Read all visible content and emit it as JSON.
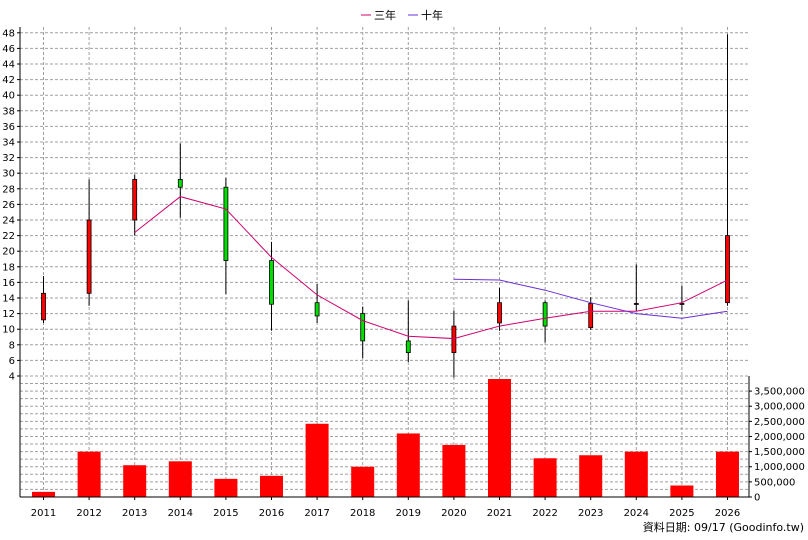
{
  "chart_data": {
    "type": "candlestick",
    "legend": {
      "placement": "top-center",
      "items": [
        {
          "name": "三年",
          "color": "#d0006f"
        },
        {
          "name": "十年",
          "color": "#6a2fd6"
        }
      ]
    },
    "years": [
      "2011",
      "2012",
      "2013",
      "2014",
      "2015",
      "2016",
      "2017",
      "2018",
      "2019",
      "2020",
      "2021",
      "2022",
      "2023",
      "2024",
      "2025",
      "2026"
    ],
    "price_axis": {
      "ylim": [
        4,
        48
      ],
      "ticks": [
        4,
        6,
        8,
        10,
        12,
        14,
        16,
        18,
        20,
        22,
        24,
        26,
        28,
        30,
        32,
        34,
        36,
        38,
        40,
        42,
        44,
        46,
        48
      ],
      "position": "left"
    },
    "volume_axis": {
      "ylim": [
        0,
        3900000
      ],
      "ticks": [
        0,
        500000,
        1000000,
        1500000,
        2000000,
        2500000,
        3000000,
        3500000
      ],
      "tick_labels": [
        "0",
        "500,000",
        "1,000,000",
        "1,500,000",
        "2,000,000",
        "2,500,000",
        "3,000,000",
        "3,500,000"
      ],
      "position": "right"
    },
    "candles": [
      {
        "year": "2011",
        "open": 11.2,
        "close": 14.6,
        "high": 16.8,
        "low": 10.8
      },
      {
        "year": "2012",
        "open": 14.6,
        "close": 24.0,
        "high": 29.2,
        "low": 13.0
      },
      {
        "year": "2013",
        "open": 24.0,
        "close": 29.2,
        "high": 29.8,
        "low": 22.0
      },
      {
        "year": "2014",
        "open": 29.2,
        "close": 28.2,
        "high": 33.8,
        "low": 24.3
      },
      {
        "year": "2015",
        "open": 28.2,
        "close": 18.8,
        "high": 29.4,
        "low": 14.5
      },
      {
        "year": "2016",
        "open": 18.8,
        "close": 13.2,
        "high": 21.2,
        "low": 9.8
      },
      {
        "year": "2017",
        "open": 13.4,
        "close": 11.7,
        "high": 15.8,
        "low": 10.8
      },
      {
        "year": "2018",
        "open": 12.0,
        "close": 8.5,
        "high": 12.9,
        "low": 6.3
      },
      {
        "year": "2019",
        "open": 8.5,
        "close": 7.0,
        "high": 13.7,
        "low": 5.8
      },
      {
        "year": "2020",
        "open": 7.0,
        "close": 10.4,
        "high": 12.4,
        "low": 3.8
      },
      {
        "year": "2021",
        "open": 10.8,
        "close": 13.4,
        "high": 15.3,
        "low": 9.8
      },
      {
        "year": "2022",
        "open": 13.4,
        "close": 10.4,
        "high": 13.7,
        "low": 8.3
      },
      {
        "year": "2023",
        "open": 10.2,
        "close": 13.3,
        "high": 14.1,
        "low": 9.9
      },
      {
        "year": "2024",
        "open": 13.3,
        "close": 13.3,
        "high": 18.3,
        "low": 12.3
      },
      {
        "year": "2025",
        "open": 13.3,
        "close": 13.3,
        "high": 15.6,
        "low": 12.3
      },
      {
        "year": "2026",
        "open": 13.4,
        "close": 22.0,
        "high": 47.8,
        "low": 13.0
      }
    ],
    "volume": [
      170000,
      1500000,
      1050000,
      1180000,
      600000,
      700000,
      2420000,
      1000000,
      2100000,
      1720000,
      3900000,
      1280000,
      1380000,
      1500000,
      380000,
      1500000
    ],
    "series": [
      {
        "name": "三年",
        "color": "#d0006f",
        "years": [
          "2013",
          "2014",
          "2015",
          "2016",
          "2017",
          "2018",
          "2019",
          "2020",
          "2021",
          "2022",
          "2023",
          "2024",
          "2025",
          "2026"
        ],
        "values": [
          22.4,
          27.0,
          25.4,
          19.2,
          14.4,
          11.1,
          9.1,
          8.8,
          10.4,
          11.4,
          12.3,
          12.3,
          13.4,
          16.3
        ]
      },
      {
        "name": "十年",
        "color": "#6a2fd6",
        "years": [
          "2020",
          "2021",
          "2022",
          "2023",
          "2024",
          "2025",
          "2026"
        ],
        "values": [
          16.4,
          16.3,
          15.0,
          13.4,
          12.0,
          11.4,
          12.3
        ]
      }
    ],
    "colors": {
      "up": "#ff0000",
      "down": "#00dd00",
      "volume": "#ff0000",
      "grid": "#a0a0a0"
    },
    "grid": true
  },
  "footer": {
    "text": "資料日期: 09/17 (Goodinfo.tw)"
  }
}
